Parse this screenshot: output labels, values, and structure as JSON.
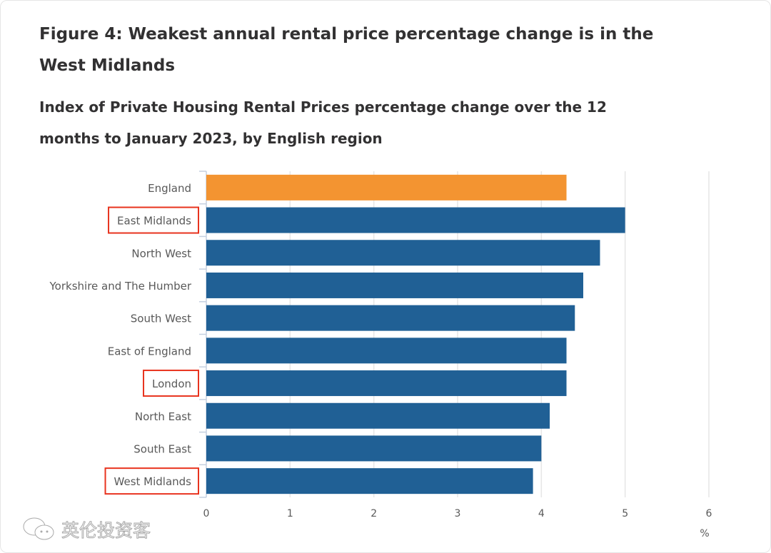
{
  "title": "Figure 4: Weakest annual rental price percentage change is in the West Midlands",
  "subtitle": "Index of Private Housing Rental Prices percentage change over the 12 months to January 2023, by English region",
  "watermark": "英伦投资客",
  "chart_data": {
    "type": "bar",
    "orientation": "horizontal",
    "categories": [
      "England",
      "East Midlands",
      "North West",
      "Yorkshire and The Humber",
      "South West",
      "East of England",
      "London",
      "North East",
      "South East",
      "West Midlands"
    ],
    "values": [
      4.3,
      5.0,
      4.7,
      4.5,
      4.4,
      4.3,
      4.3,
      4.1,
      4.0,
      3.9
    ],
    "highlighted_categories": [
      "East Midlands",
      "London",
      "West Midlands"
    ],
    "xlabel": "%",
    "xlim": [
      0,
      6
    ],
    "xticks": [
      0,
      1,
      2,
      3,
      4,
      5,
      6
    ],
    "grid": true,
    "colors": {
      "England": "#f39431",
      "regions": "#206095",
      "highlight_box": "#e8331e",
      "grid": "#e6e6e6",
      "axis": "#c5d0e0"
    }
  }
}
